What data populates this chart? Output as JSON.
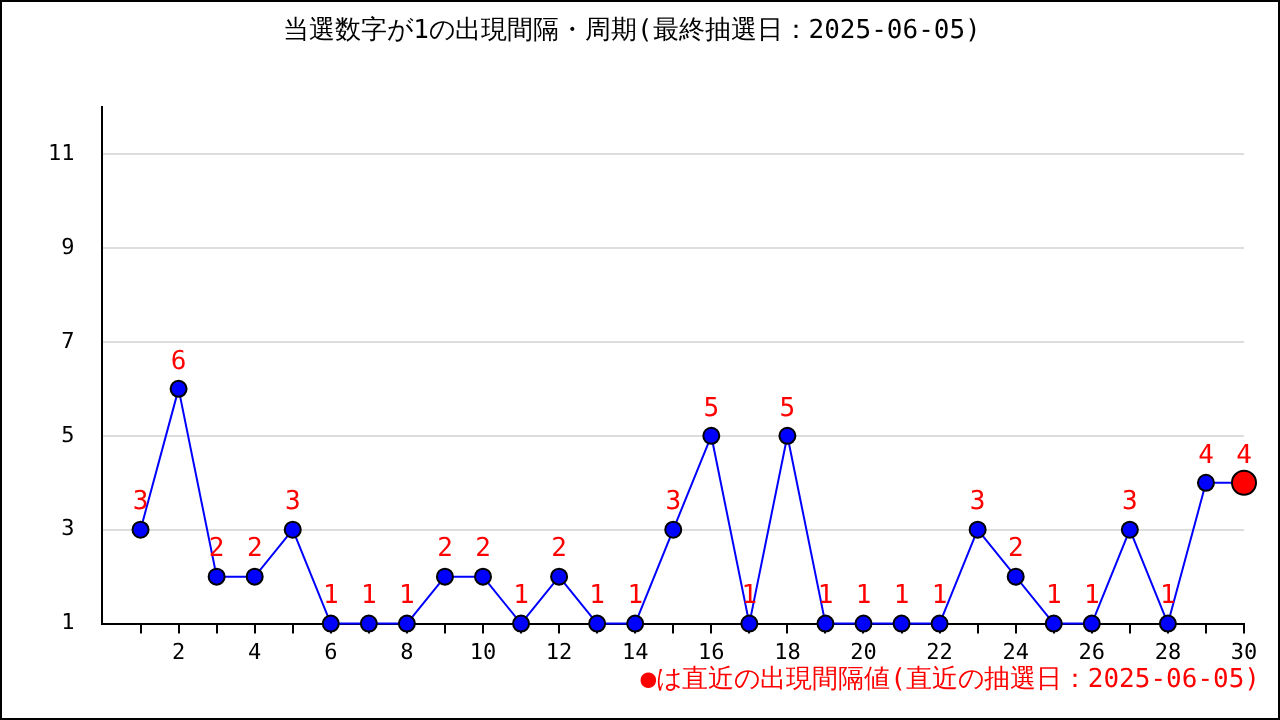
{
  "chart_data": {
    "type": "line",
    "title": "当選数字が1の出現間隔・周期(最終抽選日：2025-06-05)",
    "x": [
      1,
      2,
      3,
      4,
      5,
      6,
      7,
      8,
      9,
      10,
      11,
      12,
      13,
      14,
      15,
      16,
      17,
      18,
      19,
      20,
      21,
      22,
      23,
      24,
      25,
      26,
      27,
      28,
      29,
      30
    ],
    "series": [
      {
        "color": "#0000ff",
        "colors": [
          "#0000ff",
          "#0000ff",
          "#0000ff",
          "#0000ff",
          "#0000ff",
          "#0000ff",
          "#0000ff",
          "#0000ff",
          "#0000ff",
          "#0000ff",
          "#0000ff",
          "#0000ff",
          "#0000ff",
          "#0000ff",
          "#0000ff",
          "#0000ff",
          "#0000ff",
          "#0000ff",
          "#0000ff",
          "#0000ff",
          "#0000ff",
          "#0000ff",
          "#0000ff",
          "#0000ff",
          "#0000ff",
          "#0000ff",
          "#0000ff",
          "#0000ff",
          "#0000ff",
          "#ff0000"
        ],
        "values": [
          3,
          6,
          2,
          2,
          3,
          1,
          1,
          1,
          2,
          2,
          1,
          2,
          1,
          1,
          3,
          5,
          1,
          5,
          1,
          1,
          1,
          1,
          3,
          2,
          1,
          1,
          3,
          1,
          4,
          4
        ]
      }
    ],
    "xlim": [
      0,
      30
    ],
    "xticks": [
      {
        "value": 1,
        "label": null
      },
      2,
      {
        "value": 3,
        "label": null
      },
      4,
      {
        "value": 5,
        "label": null
      },
      6,
      {
        "value": 7,
        "label": null
      },
      8,
      {
        "value": 9,
        "label": null
      },
      10,
      {
        "value": 11,
        "label": null
      },
      12,
      {
        "value": 13,
        "label": null
      },
      14,
      {
        "value": 15,
        "label": null
      },
      16,
      {
        "value": 17,
        "label": null
      },
      18,
      {
        "value": 19,
        "label": null
      },
      20,
      {
        "value": 21,
        "label": null
      },
      22,
      {
        "value": 23,
        "label": null
      },
      24,
      {
        "value": 25,
        "label": null
      },
      26,
      {
        "value": 27,
        "label": null
      },
      28,
      {
        "value": 29,
        "label": null
      },
      30
    ],
    "ylim": [
      1,
      12
    ],
    "yticks": [
      1,
      3,
      5,
      7,
      9,
      11
    ],
    "grid": "y",
    "marker": "circle",
    "line_style": "solid",
    "data_labels": true,
    "legend": false,
    "annotations": [
      "●は直近の出現間隔値(直近の抽選日：2025-06-05)"
    ]
  }
}
